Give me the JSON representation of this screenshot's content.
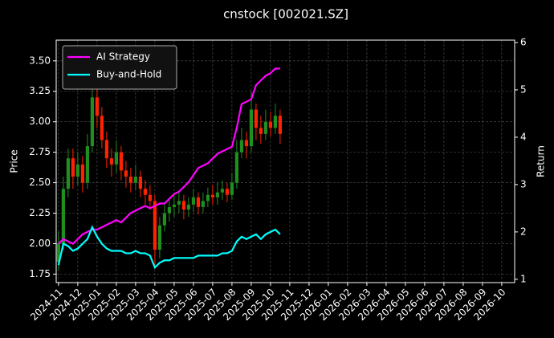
{
  "chart_data": {
    "type": "candlestick",
    "title": "cnstock [002021.SZ]",
    "y_label": "Price",
    "y2_label": "Return",
    "x": [
      0,
      0.25,
      0.5,
      0.75,
      1,
      1.25,
      1.5,
      1.75,
      2,
      2.25,
      2.5,
      2.75,
      3,
      3.25,
      3.5,
      3.75,
      4,
      4.25,
      4.5,
      4.75,
      5,
      5.25,
      5.5,
      5.75,
      6,
      6.25,
      6.5,
      6.75,
      7,
      7.25,
      7.5,
      7.75,
      8,
      8.25,
      8.5,
      8.75,
      9,
      9.25,
      9.5,
      9.75,
      10,
      10.25,
      10.5,
      10.75,
      11,
      11.25,
      11.5
    ],
    "open": [
      1.85,
      2.0,
      2.45,
      2.7,
      2.55,
      2.65,
      2.5,
      2.8,
      3.2,
      3.05,
      2.85,
      2.7,
      2.65,
      2.75,
      2.6,
      2.55,
      2.5,
      2.55,
      2.45,
      2.4,
      2.35,
      1.95,
      2.15,
      2.25,
      2.3,
      2.32,
      2.35,
      2.28,
      2.32,
      2.38,
      2.3,
      2.35,
      2.4,
      2.38,
      2.42,
      2.45,
      2.4,
      2.5,
      2.75,
      2.85,
      2.8,
      3.1,
      2.95,
      2.9,
      3.0,
      2.95,
      3.05
    ],
    "high": [
      2.1,
      2.55,
      2.78,
      2.78,
      2.75,
      2.72,
      2.9,
      3.4,
      3.3,
      3.12,
      2.92,
      2.78,
      2.85,
      2.8,
      2.68,
      2.62,
      2.65,
      2.6,
      2.52,
      2.48,
      2.4,
      2.22,
      2.32,
      2.38,
      2.4,
      2.42,
      2.4,
      2.38,
      2.45,
      2.42,
      2.42,
      2.46,
      2.48,
      2.5,
      2.52,
      2.5,
      2.58,
      2.85,
      2.95,
      2.92,
      3.25,
      3.15,
      3.05,
      3.1,
      3.08,
      3.15,
      3.1
    ],
    "low": [
      1.78,
      1.95,
      2.38,
      2.45,
      2.48,
      2.42,
      2.45,
      2.75,
      2.95,
      2.78,
      2.62,
      2.55,
      2.58,
      2.52,
      2.46,
      2.42,
      2.44,
      2.38,
      2.32,
      2.28,
      1.8,
      1.88,
      2.1,
      2.18,
      2.22,
      2.25,
      2.2,
      2.22,
      2.26,
      2.24,
      2.25,
      2.3,
      2.32,
      2.32,
      2.36,
      2.34,
      2.36,
      2.45,
      2.7,
      2.7,
      2.75,
      2.85,
      2.82,
      2.85,
      2.88,
      2.9,
      2.82
    ],
    "close": [
      2.0,
      2.45,
      2.7,
      2.55,
      2.65,
      2.5,
      2.8,
      3.2,
      3.05,
      2.85,
      2.7,
      2.65,
      2.75,
      2.6,
      2.55,
      2.5,
      2.55,
      2.45,
      2.4,
      2.35,
      1.95,
      2.15,
      2.25,
      2.3,
      2.32,
      2.35,
      2.28,
      2.32,
      2.38,
      2.3,
      2.35,
      2.4,
      2.38,
      2.42,
      2.45,
      2.4,
      2.5,
      2.75,
      2.85,
      2.8,
      3.1,
      2.95,
      2.9,
      3.0,
      2.95,
      3.05,
      2.9
    ],
    "up_color": "#1f8f1f",
    "down_color": "#ff2200",
    "series": [
      {
        "name": "AI Strategy",
        "color": "#ff00ff",
        "axis": "y2",
        "values": [
          1.75,
          1.85,
          1.8,
          1.75,
          1.85,
          1.95,
          2.0,
          2.05,
          2.05,
          2.1,
          2.15,
          2.2,
          2.25,
          2.2,
          2.3,
          2.4,
          2.45,
          2.5,
          2.55,
          2.5,
          2.55,
          2.6,
          2.6,
          2.7,
          2.8,
          2.85,
          2.95,
          3.05,
          3.2,
          3.35,
          3.4,
          3.45,
          3.55,
          3.65,
          3.7,
          3.75,
          3.8,
          4.2,
          4.7,
          4.75,
          4.8,
          5.1,
          5.2,
          5.3,
          5.35,
          5.45,
          5.45
        ]
      },
      {
        "name": "Buy-and-Hold",
        "color": "#00ffff",
        "axis": "y2",
        "values": [
          1.3,
          1.75,
          1.7,
          1.6,
          1.65,
          1.75,
          1.85,
          2.1,
          1.9,
          1.75,
          1.65,
          1.6,
          1.6,
          1.6,
          1.55,
          1.55,
          1.6,
          1.55,
          1.55,
          1.5,
          1.25,
          1.35,
          1.4,
          1.4,
          1.45,
          1.45,
          1.45,
          1.45,
          1.45,
          1.5,
          1.5,
          1.5,
          1.5,
          1.5,
          1.55,
          1.55,
          1.6,
          1.8,
          1.9,
          1.85,
          1.9,
          1.95,
          1.85,
          1.95,
          2.0,
          2.05,
          1.95
        ]
      }
    ],
    "xlim": [
      -0.12,
      23.67
    ],
    "xticks": [
      {
        "value": 0,
        "label": "2024-11"
      },
      {
        "value": 1,
        "label": "2024-12"
      },
      {
        "value": 2,
        "label": "2025-01"
      },
      {
        "value": 3,
        "label": "2025-02"
      },
      {
        "value": 4,
        "label": "2025-03"
      },
      {
        "value": 5,
        "label": "2025-04"
      },
      {
        "value": 6,
        "label": "2025-05"
      },
      {
        "value": 7,
        "label": "2025-06"
      },
      {
        "value": 8,
        "label": "2025-07"
      },
      {
        "value": 9,
        "label": "2025-08"
      },
      {
        "value": 10,
        "label": "2025-09"
      },
      {
        "value": 11,
        "label": "2025-10"
      },
      {
        "value": 12,
        "label": "2025-11"
      },
      {
        "value": 13,
        "label": "2025-12"
      },
      {
        "value": 14,
        "label": "2026-01"
      },
      {
        "value": 15,
        "label": "2026-02"
      },
      {
        "value": 16,
        "label": "2026-03"
      },
      {
        "value": 17,
        "label": "2026-04"
      },
      {
        "value": 18,
        "label": "2026-05"
      },
      {
        "value": 19,
        "label": "2026-06"
      },
      {
        "value": 20,
        "label": "2026-07"
      },
      {
        "value": 21,
        "label": "2026-08"
      },
      {
        "value": 22,
        "label": "2026-09"
      },
      {
        "value": 23,
        "label": "2026-10"
      }
    ],
    "ylim": [
      1.68,
      3.67
    ],
    "yticks": [
      1.75,
      {
        "value": 2,
        "label": "2.00"
      },
      2.25,
      {
        "value": 2.5,
        "label": "2.50"
      },
      2.75,
      {
        "value": 3,
        "label": "3.00"
      },
      3.25,
      {
        "value": 3.5,
        "label": "3.50"
      }
    ],
    "y2lim": [
      0.93,
      6.05
    ],
    "y2ticks": [
      1,
      2,
      3,
      4,
      5,
      6
    ],
    "grid": true,
    "legend": "upper left"
  }
}
